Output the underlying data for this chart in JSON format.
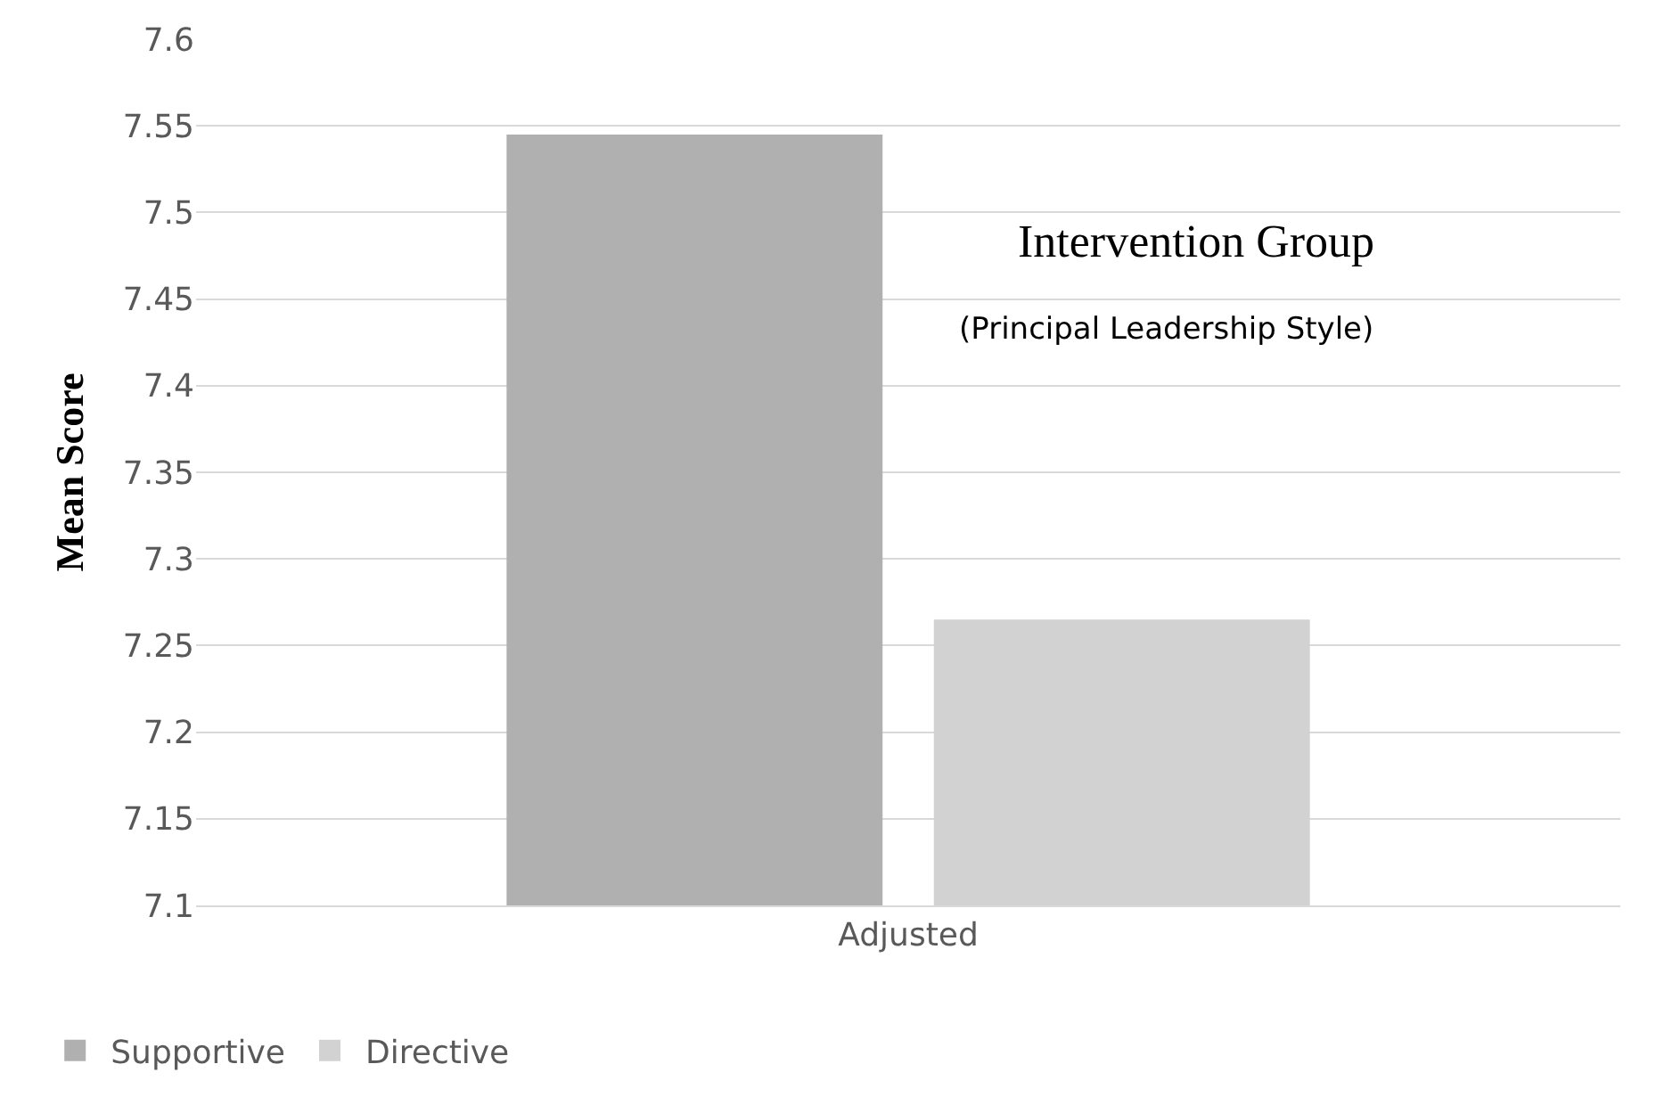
{
  "chart_data": {
    "type": "bar",
    "ylabel": "Mean Score",
    "categories": [
      "Adjusted"
    ],
    "series": [
      {
        "name": "Supportive",
        "color": "#b0b0b0",
        "values": [
          7.545
        ]
      },
      {
        "name": "Directive",
        "color": "#d2d2d2",
        "values": [
          7.265
        ]
      }
    ],
    "ylim": [
      7.1,
      7.6
    ],
    "yticks": [
      7.1,
      7.15,
      7.2,
      7.25,
      7.3,
      7.35,
      7.4,
      7.45,
      7.5,
      7.55,
      7.6
    ],
    "annotations": [
      "Intervention Group",
      "(Principal Leadership Style)"
    ],
    "grid": "y",
    "legend": "bottom left"
  }
}
